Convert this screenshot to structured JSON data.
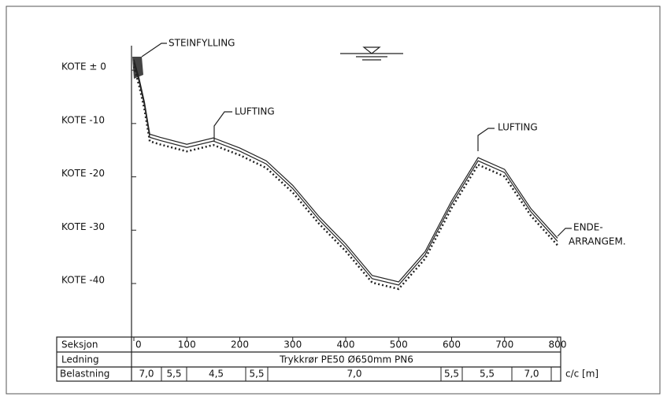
{
  "chart_data": {
    "type": "line",
    "x": [
      0,
      10,
      20,
      30,
      50,
      100,
      150,
      200,
      250,
      300,
      350,
      400,
      450,
      500,
      550,
      600,
      650,
      700,
      750,
      800
    ],
    "values": [
      2,
      -1.6,
      -6,
      -12,
      -12.6,
      -13.9,
      -12.7,
      -14.6,
      -17,
      -21.6,
      -27.5,
      -32.6,
      -38.5,
      -39.7,
      -34,
      -24.5,
      -16.4,
      -18.6,
      -26,
      -31.5
    ],
    "color": "#222",
    "xlim": [
      0,
      800
    ],
    "xticks": [
      0,
      100,
      200,
      300,
      400,
      500,
      600,
      700,
      800
    ],
    "ylim": [
      -49.6,
      4.3
    ],
    "yticks": [
      {
        "value": 0,
        "label": "KOTE  ±  0"
      },
      {
        "value": -10,
        "label": "KOTE  -10"
      },
      {
        "value": -20,
        "label": "KOTE  -20"
      },
      {
        "value": -30,
        "label": "KOTE  -30"
      },
      {
        "value": -40,
        "label": "KOTE  -40"
      }
    ],
    "annotations": {
      "fill": "STEINFYLLING",
      "vent1": "LUFTING",
      "vent2": "LUFTING",
      "end1": "ENDE-",
      "end2": "ARRANGEM."
    },
    "table": {
      "section": "Seksjon",
      "pipe_label": "Ledning",
      "pipe": "Trykkrør PE50 Ø650mm PN6",
      "load_label": "Belastning",
      "loads": [
        "7,0",
        "5,5",
        "4,5",
        "5,5",
        "7,0",
        "5,5",
        "5,5",
        "7,0"
      ],
      "unit": "c/c [m]"
    }
  }
}
